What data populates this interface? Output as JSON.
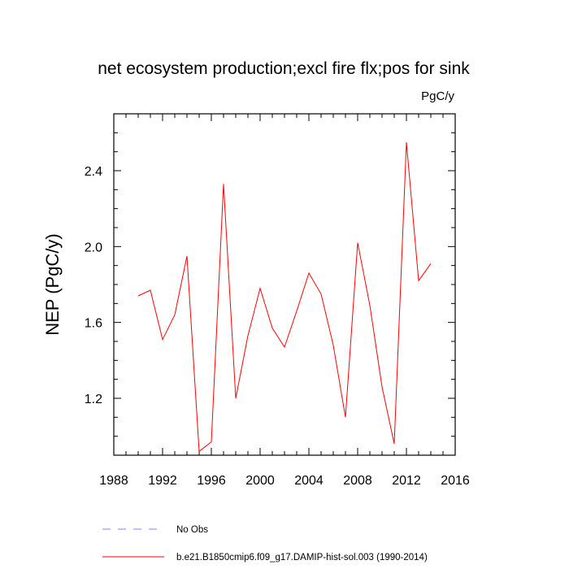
{
  "chart_data": {
    "type": "line",
    "title": "net ecosystem production;excl fire flx;pos for sink",
    "units": "PgC/y",
    "ylabel": "NEP  (PgC/y)",
    "xlabel": "",
    "xlim": [
      1988,
      2016
    ],
    "ylim": [
      0.9,
      2.7
    ],
    "x_major_ticks": [
      1988,
      1992,
      1996,
      2000,
      2004,
      2008,
      2012,
      2016
    ],
    "x_tick_labels": [
      "1988",
      "1992",
      "1996",
      "2000",
      "2004",
      "2008",
      "2012",
      "2016"
    ],
    "x_minor_ticks": [
      1989,
      1990,
      1991,
      1993,
      1994,
      1995,
      1997,
      1998,
      1999,
      2001,
      2002,
      2003,
      2005,
      2006,
      2007,
      2009,
      2010,
      2011,
      2013,
      2014,
      2015
    ],
    "y_major_ticks": [
      1.2,
      1.6,
      2.0,
      2.4
    ],
    "y_tick_labels": [
      "1.2",
      "1.6",
      "2.0",
      "2.4"
    ],
    "y_minor_ticks": [
      1.0,
      1.1,
      1.3,
      1.4,
      1.5,
      1.7,
      1.8,
      1.9,
      2.1,
      2.2,
      2.3,
      2.5,
      2.6
    ],
    "grid": false,
    "legend_position": "bottom-left",
    "x": [
      1990,
      1991,
      1992,
      1993,
      1994,
      1995,
      1996,
      1997,
      1998,
      1999,
      2000,
      2001,
      2002,
      2003,
      2004,
      2005,
      2006,
      2007,
      2008,
      2009,
      2010,
      2011,
      2012,
      2013,
      2014
    ],
    "series": [
      {
        "name": "b.e21.B1850cmip6.f09_g17.DAMIP-hist-sol.003 (1990-2014)",
        "color": "#ff0000",
        "style": "solid",
        "values": [
          1.74,
          1.77,
          1.51,
          1.64,
          1.95,
          0.92,
          0.97,
          2.33,
          1.2,
          1.53,
          1.78,
          1.57,
          1.47,
          1.66,
          1.86,
          1.75,
          1.48,
          1.1,
          2.02,
          1.69,
          1.26,
          0.96,
          2.55,
          1.82,
          1.91
        ]
      }
    ],
    "legend": [
      {
        "label": "No Obs",
        "color": "#8080ff",
        "style": "dashed"
      },
      {
        "label": "b.e21.B1850cmip6.f09_g17.DAMIP-hist-sol.003 (1990-2014)",
        "color": "#ff0000",
        "style": "solid"
      }
    ]
  }
}
